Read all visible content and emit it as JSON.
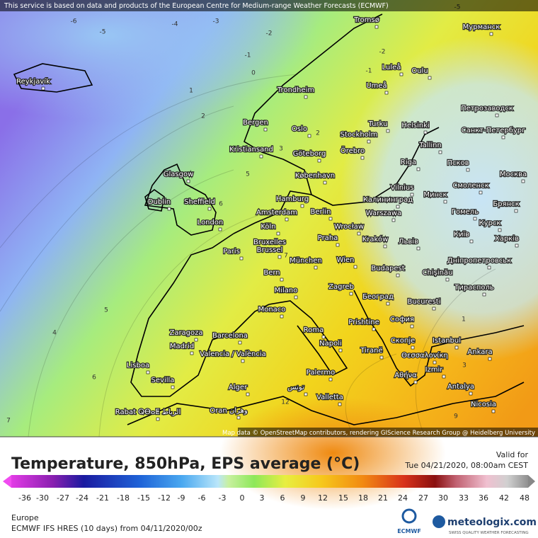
{
  "header": {
    "notice": "This service is based on data and products of the European Centre for Medium-range Weather Forecasts (ECMWF)"
  },
  "map": {
    "attribution": "Map data © OpenStreetMap contributors, rendering GIScience Research Group @ Heidelberg University",
    "cities": [
      "Reykjavík",
      "Tromsø",
      "Мурманск",
      "Luleå",
      "Oulu",
      "Umeå",
      "Trondheim",
      "Петрозаводск",
      "Bergen",
      "Turku",
      "Helsinki",
      "Санкт-Петербург",
      "Oslo",
      "Stockholm",
      "Tallinn",
      "Kristiansand",
      "Göteborg",
      "Örebro",
      "Riga",
      "Псков",
      "Glasgow",
      "København",
      "Москва",
      "Vilnius",
      "Смоленск",
      "Dublin",
      "Sheffield",
      "Hamburg",
      "Калининград",
      "Минск",
      "Брянск",
      "Amsterdam",
      "Berlin",
      "Warszawa",
      "Гомель",
      "London",
      "Köln",
      "Wrocław",
      "Курск",
      "Bruxelles",
      "Praha",
      "Kraków",
      "Львів",
      "Київ",
      "Харків",
      "Paris",
      "Brussel",
      "Wien",
      "München",
      "Дніпропетровськ",
      "Chişinău",
      "Bern",
      "Budapest",
      "Тирасполь",
      "Milano",
      "Zagreb",
      "Београд",
      "Bucuresti",
      "Monaco",
      "София",
      "Prishtine",
      "Roma",
      "Zaragoza",
      "Barcelona",
      "Istanbul",
      "Madrid",
      "Napoli",
      "Скопје",
      "Tiranë",
      "Θεσσαλονίκη",
      "Ankara",
      "Valencia / València",
      "Lisboa",
      "Izmir",
      "Αθήνα",
      "Palermo",
      "Sevilla",
      "Alger",
      "تونس",
      "Antalya",
      "Valletta",
      "Nicosia",
      "Rabat ⵕⴱⴰⵟ الرباط",
      "Oran وهران"
    ],
    "contour_labels": [
      -6,
      -5,
      -4,
      -3,
      -2,
      -1,
      0,
      1,
      2,
      3,
      5,
      6,
      7,
      5,
      4,
      6,
      7,
      2,
      1,
      3,
      12,
      9,
      -2,
      -1,
      -5
    ]
  },
  "legend": {
    "title": "Temperature, 850hPa, EPS average (°C)",
    "valid_label": "Valid for",
    "valid_time": "Tue 04/21/2020, 08:00am CEST",
    "ticks": [
      -36,
      -30,
      -27,
      -24,
      -21,
      -18,
      -15,
      -12,
      -9,
      -6,
      -3,
      0,
      3,
      6,
      9,
      12,
      15,
      18,
      21,
      24,
      27,
      30,
      33,
      36,
      42,
      48
    ]
  },
  "footer": {
    "region": "Europe",
    "model": "ECMWF IFS HRES (10 days) from 04/11/2020/00z"
  },
  "logos": {
    "ecmwf": "ECMWF",
    "meteologix": "meteologix.com",
    "tagline": "SWISS QUALITY WEATHER FORECASTING"
  }
}
